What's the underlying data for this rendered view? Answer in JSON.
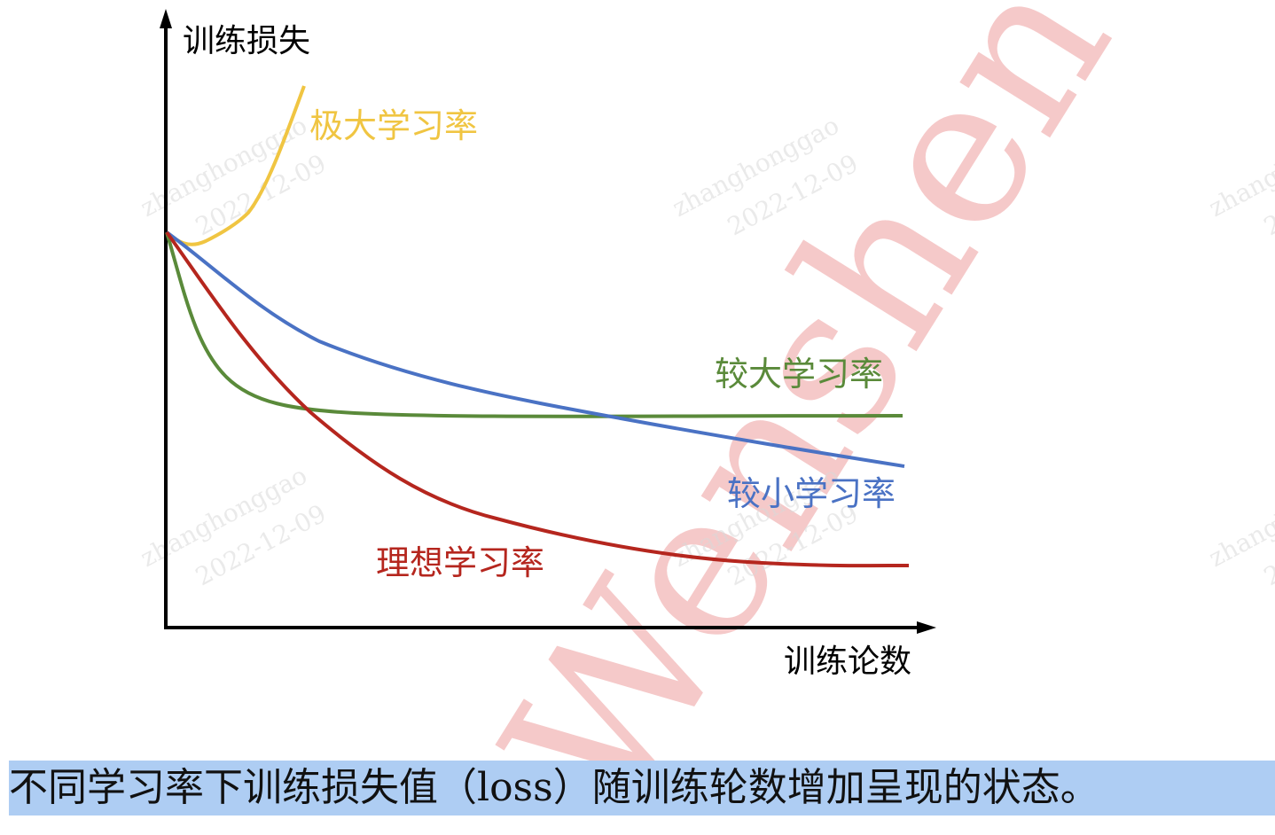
{
  "axes": {
    "y_label": "训练损失",
    "x_label": "训练论数"
  },
  "curves": [
    {
      "id": "very-large",
      "label": "极大学习率",
      "color": "#f0c542"
    },
    {
      "id": "large",
      "label": "较大学习率",
      "color": "#5a8a3a"
    },
    {
      "id": "small",
      "label": "较小学习率",
      "color": "#4a72c4"
    },
    {
      "id": "ideal",
      "label": "理想学习率",
      "color": "#b5261e"
    }
  ],
  "watermark": {
    "text": "zhanghonggao",
    "date": "2022-12-09",
    "big_text": "Wenshen WE",
    "big_color": "#f2b9b9"
  },
  "caption": "不同学习率下训练损失值（loss）随训练轮数增加呈现的状态。"
}
